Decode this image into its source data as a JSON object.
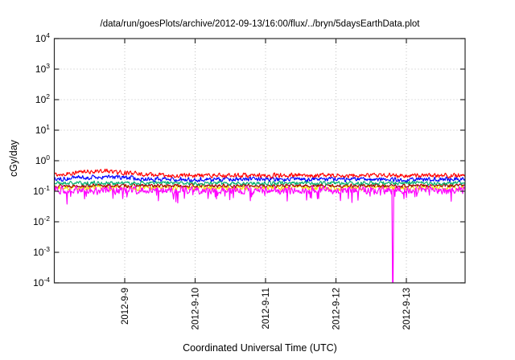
{
  "chart_data": {
    "type": "line",
    "title": "/data/run/goesPlots/archive/2012-09-13/16:00/flux/../bryn/5daysEarthData.plot",
    "xlabel": "Coordinated Universal Time (UTC)",
    "ylabel": "cGy/day",
    "y_scale": "log10",
    "ylim": [
      0.0001,
      10000
    ],
    "y_tick_exponents": [
      4,
      3,
      2,
      1,
      0,
      -1,
      -2,
      -3,
      -4
    ],
    "x_domain_days": [
      0,
      5.834
    ],
    "x_ticks": [
      {
        "day": 1,
        "label": "2012-9-9"
      },
      {
        "day": 2,
        "label": "2012-9-10"
      },
      {
        "day": 3,
        "label": "2012-9-11"
      },
      {
        "day": 4,
        "label": "2012-9-12"
      },
      {
        "day": 5,
        "label": "2012-9-13"
      }
    ],
    "grid": {
      "show": true,
      "style": "dotted",
      "color": "#c0c0c0"
    },
    "legend": {
      "show": false
    },
    "axis_color": "#2a2a2a",
    "series": [
      {
        "name": "yellow",
        "color": "#f0e000",
        "base_cgy_per_day": 0.13,
        "log10_jitter": 0.1,
        "seed": 7
      },
      {
        "name": "dark-red",
        "color": "#a00000",
        "base_cgy_per_day": 0.152,
        "log10_jitter": 0.07,
        "seed": 13
      },
      {
        "name": "sea-green",
        "color": "#00b070",
        "base_cgy_per_day": 0.185,
        "log10_jitter": 0.08,
        "seed": 21
      },
      {
        "name": "blue",
        "color": "#0000ff",
        "base_cgy_per_day": 0.245,
        "log10_jitter": 0.09,
        "seed": 34,
        "bump": {
          "center_day": 0.7,
          "sigma_day": 0.35,
          "peak_factor": 1.18
        }
      },
      {
        "name": "red",
        "color": "#ff0000",
        "base_cgy_per_day": 0.33,
        "log10_jitter": 0.09,
        "seed": 55,
        "bump": {
          "center_day": 0.65,
          "sigma_day": 0.35,
          "peak_factor": 1.38
        }
      },
      {
        "name": "magenta",
        "color": "#ff00ff",
        "base_cgy_per_day": 0.108,
        "log10_jitter": 0.15,
        "seed": 89,
        "down_spikes": {
          "probability": 0.05,
          "max_extra_decades": 0.35
        },
        "spike": {
          "day": 4.81,
          "value": 0.0001
        }
      }
    ]
  }
}
